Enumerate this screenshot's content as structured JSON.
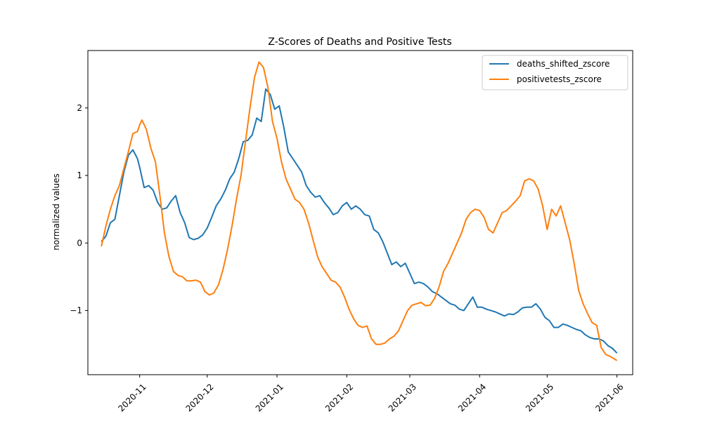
{
  "chart_data": {
    "type": "line",
    "title": "Z-Scores of Deaths and Positive Tests",
    "xlabel": "",
    "ylabel": "normalized values",
    "x_ticks": [
      "2020-11",
      "2020-12",
      "2021-01",
      "2021-02",
      "2021-03",
      "2021-04",
      "2021-05",
      "2021-06"
    ],
    "y_ticks": [
      -1,
      0,
      1,
      2
    ],
    "y_tick_labels": [
      "−1",
      "0",
      "1",
      "2"
    ],
    "xlim": [
      "2020-10-09",
      "2021-06-08"
    ],
    "ylim": [
      -1.95,
      2.85
    ],
    "grid": false,
    "legend_position": "top-right",
    "series": [
      {
        "name": "deaths_shifted_zscore",
        "color": "#1f77b4",
        "points": [
          [
            "2020-10-15",
            0.02
          ],
          [
            "2020-10-17",
            0.1
          ],
          [
            "2020-10-19",
            0.3
          ],
          [
            "2020-10-21",
            0.35
          ],
          [
            "2020-10-23",
            0.7
          ],
          [
            "2020-10-25",
            1.05
          ],
          [
            "2020-10-27",
            1.3
          ],
          [
            "2020-10-29",
            1.38
          ],
          [
            "2020-10-31",
            1.25
          ],
          [
            "2020-11-01",
            1.12
          ],
          [
            "2020-11-03",
            0.82
          ],
          [
            "2020-11-05",
            0.85
          ],
          [
            "2020-11-07",
            0.78
          ],
          [
            "2020-11-09",
            0.6
          ],
          [
            "2020-11-11",
            0.5
          ],
          [
            "2020-11-13",
            0.52
          ],
          [
            "2020-11-15",
            0.62
          ],
          [
            "2020-11-17",
            0.7
          ],
          [
            "2020-11-19",
            0.45
          ],
          [
            "2020-11-21",
            0.3
          ],
          [
            "2020-11-23",
            0.08
          ],
          [
            "2020-11-25",
            0.05
          ],
          [
            "2020-11-27",
            0.07
          ],
          [
            "2020-11-29",
            0.12
          ],
          [
            "2020-12-01",
            0.22
          ],
          [
            "2020-12-03",
            0.38
          ],
          [
            "2020-12-05",
            0.55
          ],
          [
            "2020-12-07",
            0.65
          ],
          [
            "2020-12-09",
            0.78
          ],
          [
            "2020-12-11",
            0.95
          ],
          [
            "2020-12-13",
            1.05
          ],
          [
            "2020-12-15",
            1.25
          ],
          [
            "2020-12-17",
            1.5
          ],
          [
            "2020-12-19",
            1.52
          ],
          [
            "2020-12-21",
            1.6
          ],
          [
            "2020-12-23",
            1.85
          ],
          [
            "2020-12-25",
            1.8
          ],
          [
            "2020-12-27",
            2.28
          ],
          [
            "2020-12-29",
            2.2
          ],
          [
            "2020-12-31",
            1.98
          ],
          [
            "2021-01-02",
            2.03
          ],
          [
            "2021-01-04",
            1.72
          ],
          [
            "2021-01-06",
            1.35
          ],
          [
            "2021-01-08",
            1.25
          ],
          [
            "2021-01-10",
            1.15
          ],
          [
            "2021-01-12",
            1.05
          ],
          [
            "2021-01-14",
            0.85
          ],
          [
            "2021-01-16",
            0.75
          ],
          [
            "2021-01-18",
            0.68
          ],
          [
            "2021-01-20",
            0.7
          ],
          [
            "2021-01-22",
            0.6
          ],
          [
            "2021-01-24",
            0.52
          ],
          [
            "2021-01-26",
            0.42
          ],
          [
            "2021-01-28",
            0.45
          ],
          [
            "2021-01-30",
            0.55
          ],
          [
            "2021-02-01",
            0.6
          ],
          [
            "2021-02-03",
            0.5
          ],
          [
            "2021-02-05",
            0.55
          ],
          [
            "2021-02-07",
            0.5
          ],
          [
            "2021-02-09",
            0.42
          ],
          [
            "2021-02-11",
            0.4
          ],
          [
            "2021-02-13",
            0.2
          ],
          [
            "2021-02-15",
            0.15
          ],
          [
            "2021-02-17",
            0.02
          ],
          [
            "2021-02-19",
            -0.15
          ],
          [
            "2021-02-21",
            -0.32
          ],
          [
            "2021-02-23",
            -0.28
          ],
          [
            "2021-02-25",
            -0.35
          ],
          [
            "2021-02-27",
            -0.3
          ],
          [
            "2021-03-01",
            -0.45
          ],
          [
            "2021-03-03",
            -0.6
          ],
          [
            "2021-03-05",
            -0.58
          ],
          [
            "2021-03-07",
            -0.6
          ],
          [
            "2021-03-09",
            -0.65
          ],
          [
            "2021-03-11",
            -0.72
          ],
          [
            "2021-03-13",
            -0.75
          ],
          [
            "2021-03-15",
            -0.8
          ],
          [
            "2021-03-17",
            -0.85
          ],
          [
            "2021-03-19",
            -0.9
          ],
          [
            "2021-03-21",
            -0.92
          ],
          [
            "2021-03-23",
            -0.98
          ],
          [
            "2021-03-25",
            -1.0
          ],
          [
            "2021-03-27",
            -0.9
          ],
          [
            "2021-03-29",
            -0.8
          ],
          [
            "2021-03-31",
            -0.95
          ],
          [
            "2021-04-02",
            -0.95
          ],
          [
            "2021-04-04",
            -0.98
          ],
          [
            "2021-04-06",
            -1.0
          ],
          [
            "2021-04-08",
            -1.02
          ],
          [
            "2021-04-10",
            -1.05
          ],
          [
            "2021-04-12",
            -1.08
          ],
          [
            "2021-04-14",
            -1.05
          ],
          [
            "2021-04-16",
            -1.06
          ],
          [
            "2021-04-18",
            -1.02
          ],
          [
            "2021-04-20",
            -0.96
          ],
          [
            "2021-04-22",
            -0.95
          ],
          [
            "2021-04-24",
            -0.95
          ],
          [
            "2021-04-26",
            -0.9
          ],
          [
            "2021-04-28",
            -0.98
          ],
          [
            "2021-04-30",
            -1.1
          ],
          [
            "2021-05-02",
            -1.15
          ],
          [
            "2021-05-04",
            -1.25
          ],
          [
            "2021-05-06",
            -1.25
          ],
          [
            "2021-05-08",
            -1.2
          ],
          [
            "2021-05-10",
            -1.22
          ],
          [
            "2021-05-12",
            -1.25
          ],
          [
            "2021-05-14",
            -1.28
          ],
          [
            "2021-05-16",
            -1.3
          ],
          [
            "2021-05-18",
            -1.36
          ],
          [
            "2021-05-20",
            -1.4
          ],
          [
            "2021-05-22",
            -1.42
          ],
          [
            "2021-05-24",
            -1.42
          ],
          [
            "2021-05-26",
            -1.45
          ],
          [
            "2021-05-28",
            -1.52
          ],
          [
            "2021-05-30",
            -1.56
          ],
          [
            "2021-06-01",
            -1.63
          ]
        ]
      },
      {
        "name": "positivetests_zscore",
        "color": "#ff7f0e",
        "points": [
          [
            "2020-10-15",
            -0.05
          ],
          [
            "2020-10-17",
            0.25
          ],
          [
            "2020-10-19",
            0.5
          ],
          [
            "2020-10-21",
            0.7
          ],
          [
            "2020-10-23",
            0.85
          ],
          [
            "2020-10-25",
            1.1
          ],
          [
            "2020-10-27",
            1.35
          ],
          [
            "2020-10-29",
            1.62
          ],
          [
            "2020-10-31",
            1.65
          ],
          [
            "2020-11-01",
            1.75
          ],
          [
            "2020-11-02",
            1.82
          ],
          [
            "2020-11-04",
            1.68
          ],
          [
            "2020-11-06",
            1.4
          ],
          [
            "2020-11-08",
            1.2
          ],
          [
            "2020-11-10",
            0.7
          ],
          [
            "2020-11-12",
            0.15
          ],
          [
            "2020-11-14",
            -0.2
          ],
          [
            "2020-11-16",
            -0.42
          ],
          [
            "2020-11-18",
            -0.48
          ],
          [
            "2020-11-20",
            -0.5
          ],
          [
            "2020-11-22",
            -0.56
          ],
          [
            "2020-11-24",
            -0.56
          ],
          [
            "2020-11-26",
            -0.55
          ],
          [
            "2020-11-28",
            -0.58
          ],
          [
            "2020-11-30",
            -0.72
          ],
          [
            "2020-12-02",
            -0.77
          ],
          [
            "2020-12-04",
            -0.74
          ],
          [
            "2020-12-06",
            -0.62
          ],
          [
            "2020-12-08",
            -0.4
          ],
          [
            "2020-12-10",
            -0.1
          ],
          [
            "2020-12-12",
            0.25
          ],
          [
            "2020-12-14",
            0.65
          ],
          [
            "2020-12-16",
            1.0
          ],
          [
            "2020-12-18",
            1.5
          ],
          [
            "2020-12-20",
            2.0
          ],
          [
            "2020-12-22",
            2.45
          ],
          [
            "2020-12-24",
            2.68
          ],
          [
            "2020-12-26",
            2.6
          ],
          [
            "2020-12-28",
            2.3
          ],
          [
            "2020-12-30",
            1.8
          ],
          [
            "2021-01-01",
            1.55
          ],
          [
            "2021-01-03",
            1.2
          ],
          [
            "2021-01-05",
            0.95
          ],
          [
            "2021-01-07",
            0.8
          ],
          [
            "2021-01-09",
            0.65
          ],
          [
            "2021-01-11",
            0.6
          ],
          [
            "2021-01-13",
            0.5
          ],
          [
            "2021-01-15",
            0.3
          ],
          [
            "2021-01-17",
            0.05
          ],
          [
            "2021-01-19",
            -0.2
          ],
          [
            "2021-01-21",
            -0.35
          ],
          [
            "2021-01-23",
            -0.45
          ],
          [
            "2021-01-25",
            -0.55
          ],
          [
            "2021-01-27",
            -0.58
          ],
          [
            "2021-01-29",
            -0.65
          ],
          [
            "2021-01-31",
            -0.8
          ],
          [
            "2021-02-02",
            -0.98
          ],
          [
            "2021-02-04",
            -1.12
          ],
          [
            "2021-02-06",
            -1.22
          ],
          [
            "2021-02-08",
            -1.25
          ],
          [
            "2021-02-10",
            -1.23
          ],
          [
            "2021-02-12",
            -1.42
          ],
          [
            "2021-02-14",
            -1.5
          ],
          [
            "2021-02-16",
            -1.5
          ],
          [
            "2021-02-18",
            -1.48
          ],
          [
            "2021-02-20",
            -1.42
          ],
          [
            "2021-02-22",
            -1.38
          ],
          [
            "2021-02-24",
            -1.3
          ],
          [
            "2021-02-26",
            -1.15
          ],
          [
            "2021-02-28",
            -1.0
          ],
          [
            "2021-03-02",
            -0.92
          ],
          [
            "2021-03-04",
            -0.9
          ],
          [
            "2021-03-06",
            -0.88
          ],
          [
            "2021-03-08",
            -0.93
          ],
          [
            "2021-03-10",
            -0.92
          ],
          [
            "2021-03-12",
            -0.82
          ],
          [
            "2021-03-14",
            -0.65
          ],
          [
            "2021-03-16",
            -0.42
          ],
          [
            "2021-03-18",
            -0.3
          ],
          [
            "2021-03-20",
            -0.15
          ],
          [
            "2021-03-22",
            0.0
          ],
          [
            "2021-03-24",
            0.15
          ],
          [
            "2021-03-26",
            0.35
          ],
          [
            "2021-03-28",
            0.45
          ],
          [
            "2021-03-30",
            0.5
          ],
          [
            "2021-04-01",
            0.48
          ],
          [
            "2021-04-03",
            0.38
          ],
          [
            "2021-04-05",
            0.2
          ],
          [
            "2021-04-07",
            0.15
          ],
          [
            "2021-04-09",
            0.3
          ],
          [
            "2021-04-11",
            0.45
          ],
          [
            "2021-04-13",
            0.48
          ],
          [
            "2021-04-15",
            0.55
          ],
          [
            "2021-04-17",
            0.62
          ],
          [
            "2021-04-19",
            0.7
          ],
          [
            "2021-04-21",
            0.92
          ],
          [
            "2021-04-23",
            0.95
          ],
          [
            "2021-04-25",
            0.92
          ],
          [
            "2021-04-27",
            0.8
          ],
          [
            "2021-04-29",
            0.55
          ],
          [
            "2021-05-01",
            0.2
          ],
          [
            "2021-05-03",
            0.5
          ],
          [
            "2021-05-05",
            0.4
          ],
          [
            "2021-05-07",
            0.55
          ],
          [
            "2021-05-09",
            0.3
          ],
          [
            "2021-05-11",
            0.05
          ],
          [
            "2021-05-13",
            -0.3
          ],
          [
            "2021-05-15",
            -0.7
          ],
          [
            "2021-05-17",
            -0.9
          ],
          [
            "2021-05-19",
            -1.05
          ],
          [
            "2021-05-21",
            -1.18
          ],
          [
            "2021-05-23",
            -1.22
          ],
          [
            "2021-05-25",
            -1.55
          ],
          [
            "2021-05-27",
            -1.65
          ],
          [
            "2021-05-29",
            -1.68
          ],
          [
            "2021-05-31",
            -1.72
          ],
          [
            "2021-06-01",
            -1.74
          ]
        ]
      }
    ]
  }
}
